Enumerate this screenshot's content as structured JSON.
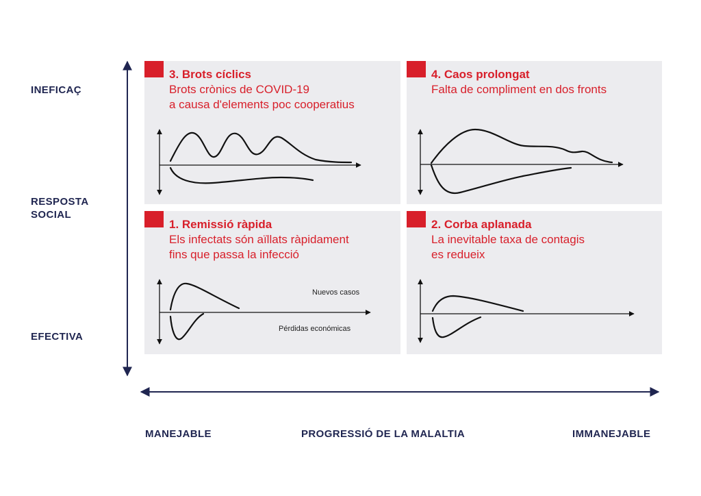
{
  "y_axis": {
    "top_label": "INEFICAÇ",
    "middle_label_line1": "RESPOSTA",
    "middle_label_line2": "SOCIAL",
    "bottom_label": "EFECTIVA"
  },
  "x_axis": {
    "left_label": "MANEJABLE",
    "center_label": "PROGRESSIÓ DE LA MALALTIA",
    "right_label": "IMMANEJABLE"
  },
  "quadrants": {
    "q3": {
      "title": "3. Brots cíclics",
      "desc_line1": "Brots crònics de COVID-19",
      "desc_line2": "a causa d'elements poc cooperatius"
    },
    "q4": {
      "title": "4. Caos prolongat",
      "desc_line1": "Falta de compliment en dos fronts"
    },
    "q1": {
      "title": "1. Remissió ràpida",
      "desc_line1": "Els infectats són aïllats ràpidament",
      "desc_line2": "fins que passa la infecció",
      "upper_curve_label": "Nuevos casos",
      "lower_curve_label": "Pérdidas económicas"
    },
    "q2": {
      "title": "2. Corba aplanada",
      "desc_line1": "La inevitable taxa de contagis",
      "desc_line2": "es redueix"
    }
  },
  "colors": {
    "accent": "#d81f2a",
    "navy": "#1f2550",
    "panel": "#ececef"
  }
}
